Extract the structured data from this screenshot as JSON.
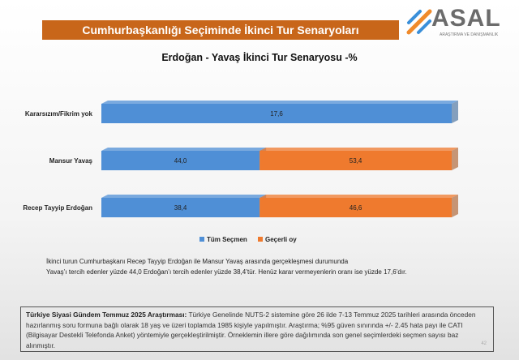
{
  "header": {
    "title": "Cumhurbaşkanlığı Seçiminde İkinci Tur Senaryoları",
    "logo_text": "ASAL",
    "logo_sub": "ARAŞTIRMA VE DANIŞMANLIK"
  },
  "colors": {
    "blue": "#4f8fd6",
    "orange": "#ef7a2e",
    "title_bar": "#c8661a"
  },
  "chart_data": {
    "type": "bar",
    "orientation": "horizontal",
    "stacked": "100%",
    "title": "Erdoğan - Yavaş İkinci Tur Senaryosu -%",
    "categories": [
      "Kararsızım/Fikrim yok",
      "Mansur Yavaş",
      "Recep Tayyip Erdoğan"
    ],
    "series": [
      {
        "name": "Tüm Seçmen",
        "color": "#4f8fd6",
        "values": [
          17.6,
          44.0,
          38.4
        ],
        "labels": [
          "17,6",
          "44,0",
          "38,4"
        ]
      },
      {
        "name": "Geçerli oy",
        "color": "#ef7a2e",
        "values": [
          null,
          53.4,
          46.6
        ],
        "labels": [
          "",
          "53,4",
          "46,6"
        ]
      }
    ],
    "legend": "bottom",
    "grid": false
  },
  "note": {
    "line1": "İkinci turun  Cumhurbaşkanı  Recep Tayyip Erdoğan ile Mansur Yavaş arasında gerçekleşmesi durumunda",
    "line2": "Yavaş’ı tercih edenler yüzde 44,0 Erdoğan’ı tercih edenler yüzde 38,4’tür.  Henüz karar vermeyenlerin oranı ise yüzde 17,6’dır."
  },
  "footer": {
    "bold": "Türkiye Siyasi Gündem Temmuz 2025 Araştırması:",
    "text": " Türkiye Genelinde  NUTS-2 sistemine göre 26 ilde 7-13 Temmuz 2025 tarihleri arasında önceden hazırlanmış soru formuna bağlı olarak 18 yaş ve üzeri toplamda 1985 kişiyle yapılmıştır. Araştırma; %95 güven sınırında +/- 2.45 hata payı ile CATI (Bilgisayar Destekli Telefonda  Anket) yöntemiyle gerçekleştirilmiştir. Örneklemin illere göre dağılımında son genel  seçimlerdeki  seçmen sayısı baz alınmıştır.",
    "page": "42"
  }
}
